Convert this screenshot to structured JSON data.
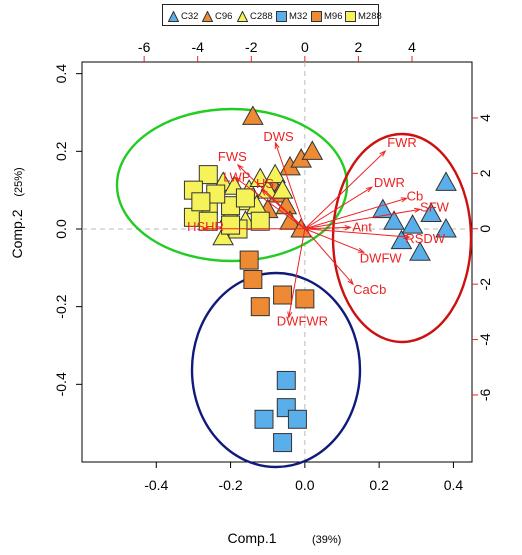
{
  "chart_data": {
    "type": "scatter",
    "title": "",
    "xlabel": "Comp.1",
    "xlabel_pct": "(39%)",
    "ylabel": "Comp.2",
    "ylabel_pct": "(25%)",
    "xlim": [
      -0.6,
      0.45
    ],
    "ylim": [
      -0.6,
      0.43
    ],
    "x_ticks": [
      "-0.4",
      "-0.2",
      "0.0",
      "0.2",
      "0.4"
    ],
    "y_ticks": [
      "-0.4",
      "-0.2",
      "0.0",
      "0.2",
      "0.4"
    ],
    "top_axis_ticks": [
      "-6",
      "-4",
      "-2",
      "0",
      "2",
      "4"
    ],
    "right_axis_ticks": [
      "-6",
      "-4",
      "-2",
      "0",
      "2",
      "4"
    ],
    "top_axis_range": [
      -8.32,
      6.24
    ],
    "right_axis_range": [
      -8.42,
      6.02
    ],
    "legend_position": "top-center",
    "series": [
      {
        "name": "C32",
        "marker": "triangle",
        "color": "#5aaeea",
        "points": [
          [
            0.38,
            0.12
          ],
          [
            0.21,
            0.05
          ],
          [
            0.24,
            0.02
          ],
          [
            0.26,
            -0.03
          ],
          [
            0.31,
            -0.06
          ],
          [
            0.34,
            0.04
          ],
          [
            0.38,
            0.0
          ],
          [
            0.29,
            0.01
          ]
        ]
      },
      {
        "name": "C96",
        "marker": "triangle",
        "color": "#ed8a33",
        "points": [
          [
            -0.14,
            0.29
          ],
          [
            -0.04,
            0.16
          ],
          [
            -0.01,
            0.18
          ],
          [
            0.02,
            0.2
          ],
          [
            -0.09,
            0.12
          ],
          [
            -0.07,
            0.09
          ],
          [
            -0.05,
            0.06
          ],
          [
            -0.1,
            0.05
          ],
          [
            -0.04,
            0.02
          ],
          [
            -0.01,
            0.0
          ]
        ]
      },
      {
        "name": "C288",
        "marker": "triangle",
        "color": "#f5f25a",
        "points": [
          [
            -0.22,
            0.12
          ],
          [
            -0.19,
            0.11
          ],
          [
            -0.15,
            0.1
          ],
          [
            -0.12,
            0.13
          ],
          [
            -0.1,
            0.1
          ],
          [
            -0.17,
            0.07
          ],
          [
            -0.13,
            0.06
          ],
          [
            -0.2,
            0.04
          ],
          [
            -0.16,
            0.02
          ],
          [
            -0.08,
            0.14
          ],
          [
            -0.06,
            0.1
          ],
          [
            -0.22,
            -0.02
          ]
        ]
      },
      {
        "name": "M32",
        "marker": "square",
        "color": "#5aaeea",
        "points": [
          [
            -0.05,
            -0.39
          ],
          [
            -0.05,
            -0.46
          ],
          [
            -0.11,
            -0.49
          ],
          [
            -0.02,
            -0.49
          ],
          [
            -0.06,
            -0.55
          ]
        ]
      },
      {
        "name": "M96",
        "marker": "square",
        "color": "#ed8a33",
        "points": [
          [
            -0.15,
            -0.08
          ],
          [
            -0.14,
            -0.13
          ],
          [
            -0.12,
            -0.2
          ],
          [
            -0.06,
            -0.17
          ],
          [
            0.0,
            -0.18
          ]
        ]
      },
      {
        "name": "M288",
        "marker": "square",
        "color": "#f5f25a",
        "points": [
          [
            -0.26,
            0.14
          ],
          [
            -0.3,
            0.1
          ],
          [
            -0.26,
            0.06
          ],
          [
            -0.3,
            0.03
          ],
          [
            -0.26,
            0.02
          ],
          [
            -0.18,
            0.0
          ],
          [
            -0.2,
            0.06
          ],
          [
            -0.2,
            0.01
          ],
          [
            -0.16,
            0.08
          ],
          [
            -0.24,
            0.09
          ],
          [
            -0.28,
            0.07
          ],
          [
            -0.12,
            0.02
          ]
        ]
      }
    ],
    "loadings": [
      {
        "label": "FWS",
        "x": -2.5,
        "y": 2.3
      },
      {
        "label": "LWP",
        "x": -2.6,
        "y": 1.85
      },
      {
        "label": "DWS",
        "x": -1.1,
        "y": 3.1
      },
      {
        "label": "HS",
        "x": -1.6,
        "y": 1.4
      },
      {
        "label": "HSHR",
        "x": -3.8,
        "y": 0.0
      },
      {
        "label": "FWR",
        "x": 3.0,
        "y": 2.8
      },
      {
        "label": "DWR",
        "x": 2.5,
        "y": 1.5
      },
      {
        "label": "Cb",
        "x": 3.8,
        "y": 1.1
      },
      {
        "label": "SFW",
        "x": 4.3,
        "y": 0.7
      },
      {
        "label": "Ant",
        "x": 1.7,
        "y": 0.05
      },
      {
        "label": "RSDW",
        "x": 3.9,
        "y": -0.3
      },
      {
        "label": "DWFW",
        "x": 2.2,
        "y": -0.85
      },
      {
        "label": "CaCb",
        "x": 1.8,
        "y": -2.0
      },
      {
        "label": "DWFWR",
        "x": -0.6,
        "y": -3.2
      }
    ],
    "ellipses": [
      {
        "group": "C288/M288/C96",
        "color": "#22cc22"
      },
      {
        "group": "C32",
        "color": "#cc1111"
      },
      {
        "group": "M32/M96",
        "color": "#101a7a"
      }
    ],
    "grid": false
  }
}
